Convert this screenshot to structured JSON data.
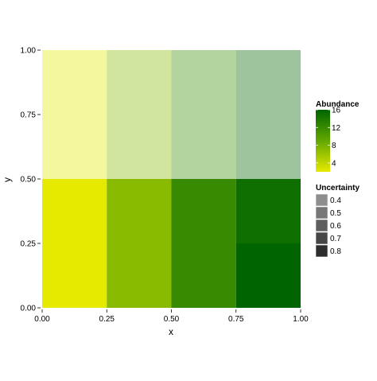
{
  "chart_data": {
    "type": "heatmap",
    "title": "",
    "xlabel": "x",
    "ylabel": "y",
    "xlim": [
      0,
      1
    ],
    "ylim": [
      0,
      1
    ],
    "x_ticks": [
      "0.00",
      "0.25",
      "0.50",
      "0.75",
      "1.00"
    ],
    "y_ticks": [
      "0.00",
      "0.25",
      "0.50",
      "0.75",
      "1.00"
    ],
    "grid": false,
    "x_bins": [
      [
        0.0,
        0.25
      ],
      [
        0.25,
        0.5
      ],
      [
        0.5,
        0.75
      ],
      [
        0.75,
        1.0
      ]
    ],
    "y_bins": [
      [
        0.0,
        0.25
      ],
      [
        0.25,
        0.5
      ],
      [
        0.5,
        0.75
      ],
      [
        0.75,
        1.0
      ]
    ],
    "abundance_scale": {
      "min": 2,
      "max": 16,
      "low_color": "#e6ea00",
      "mid_color": "#62a800",
      "high_color": "#006400"
    },
    "cells": [
      {
        "x": 0.125,
        "y": 0.125,
        "abundance": 2,
        "uncertainty": 0.8
      },
      {
        "x": 0.375,
        "y": 0.125,
        "abundance": 7,
        "uncertainty": 0.8
      },
      {
        "x": 0.625,
        "y": 0.125,
        "abundance": 12,
        "uncertainty": 0.8
      },
      {
        "x": 0.875,
        "y": 0.125,
        "abundance": 16,
        "uncertainty": 0.8
      },
      {
        "x": 0.125,
        "y": 0.375,
        "abundance": 2,
        "uncertainty": 0.8
      },
      {
        "x": 0.375,
        "y": 0.375,
        "abundance": 7,
        "uncertainty": 0.8
      },
      {
        "x": 0.625,
        "y": 0.375,
        "abundance": 12,
        "uncertainty": 0.8
      },
      {
        "x": 0.875,
        "y": 0.375,
        "abundance": 15,
        "uncertainty": 0.8
      },
      {
        "x": 0.125,
        "y": 0.625,
        "abundance": 2,
        "uncertainty": 0.4
      },
      {
        "x": 0.375,
        "y": 0.625,
        "abundance": 7,
        "uncertainty": 0.4
      },
      {
        "x": 0.625,
        "y": 0.625,
        "abundance": 12,
        "uncertainty": 0.4
      },
      {
        "x": 0.875,
        "y": 0.625,
        "abundance": 16,
        "uncertainty": 0.4
      },
      {
        "x": 0.125,
        "y": 0.875,
        "abundance": 2,
        "uncertainty": 0.4
      },
      {
        "x": 0.375,
        "y": 0.875,
        "abundance": 7,
        "uncertainty": 0.4
      },
      {
        "x": 0.625,
        "y": 0.875,
        "abundance": 12,
        "uncertainty": 0.4
      },
      {
        "x": 0.875,
        "y": 0.875,
        "abundance": 16,
        "uncertainty": 0.4
      }
    ],
    "legend": {
      "placement": "right",
      "abundance": {
        "title": "Abundance",
        "breaks": [
          "4",
          "8",
          "12",
          "16"
        ],
        "break_values": [
          4,
          8,
          12,
          16
        ]
      },
      "uncertainty": {
        "title": "Uncertainty",
        "entries": [
          {
            "label": "0.4",
            "color": "#8e8e8e"
          },
          {
            "label": "0.5",
            "color": "#777777"
          },
          {
            "label": "0.6",
            "color": "#5f5f5f"
          },
          {
            "label": "0.7",
            "color": "#464646"
          },
          {
            "label": "0.8",
            "color": "#2d2d2d"
          }
        ]
      }
    }
  }
}
